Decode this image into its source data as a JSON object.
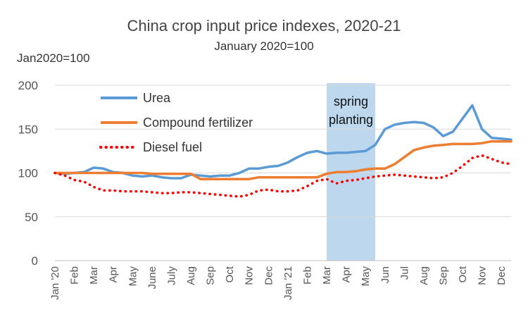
{
  "chart_data": {
    "type": "line",
    "title": "China crop input price indexes, 2020-21",
    "subtitle": "January 2020=100",
    "ylabel": "Jan2020=100",
    "ylim": [
      0,
      200
    ],
    "yticks": [
      0,
      50,
      100,
      150,
      200
    ],
    "grid": "horizontal",
    "legend": "top-left",
    "xtick_labels": [
      "Jan '20",
      "Feb",
      "Mar",
      "Apr",
      "May",
      "June",
      "July",
      "Aug",
      "Sep",
      "Oct",
      "Nov",
      "Dec",
      "Jan '21",
      "Feb",
      "Mar",
      "Apr",
      "May",
      "Jun",
      "Jul",
      "Aug",
      "Sep",
      "Oct",
      "Nov",
      "Dec"
    ],
    "x": [
      0,
      0.5,
      1,
      1.5,
      2,
      2.5,
      3,
      3.5,
      4,
      4.5,
      5,
      5.5,
      6,
      6.5,
      7,
      7.5,
      8,
      8.5,
      9,
      9.5,
      10,
      10.5,
      11,
      11.5,
      12,
      12.5,
      13,
      13.5,
      14,
      14.5,
      15,
      15.5,
      16,
      16.5,
      17,
      17.5,
      18,
      18.5,
      19,
      19.5,
      20,
      20.5,
      21,
      21.5,
      22,
      22.5,
      23,
      23.5
    ],
    "series": [
      {
        "name": "Urea",
        "color": "#5b9bd5",
        "style": "solid",
        "values": [
          100,
          99,
          100,
          101,
          106,
          105,
          101,
          100,
          97,
          96,
          97,
          95,
          94,
          94,
          98,
          97,
          96,
          97,
          97,
          100,
          105,
          105,
          107,
          108,
          112,
          118,
          123,
          125,
          122,
          123,
          123,
          124,
          125,
          132,
          150,
          155,
          157,
          158,
          157,
          152,
          142,
          147,
          162,
          177,
          150,
          140,
          139,
          138
        ]
      },
      {
        "name": "Compound fertilizer",
        "color": "#ed7d31",
        "style": "solid",
        "values": [
          100,
          100,
          100,
          100,
          100,
          100,
          100,
          100,
          100,
          100,
          99,
          99,
          99,
          99,
          99,
          93,
          93,
          93,
          93,
          93,
          93,
          95,
          95,
          95,
          95,
          95,
          95,
          95,
          99,
          101,
          101,
          102,
          104,
          105,
          105,
          110,
          118,
          126,
          129,
          131,
          132,
          133,
          133,
          133,
          134,
          136,
          136,
          136
        ]
      },
      {
        "name": "Diesel fuel",
        "color": "#ff0000",
        "style": "dotted",
        "values": [
          100,
          97,
          92,
          90,
          84,
          80,
          80,
          79,
          79,
          79,
          78,
          77,
          77,
          78,
          78,
          77,
          76,
          75,
          74,
          73,
          75,
          80,
          81,
          79,
          79,
          80,
          85,
          91,
          93,
          88,
          91,
          92,
          94,
          96,
          97,
          98,
          97,
          96,
          95,
          94,
          95,
          100,
          108,
          117,
          120,
          116,
          112,
          110
        ]
      }
    ],
    "annotations": [
      {
        "text_lines": [
          "spring",
          "planting"
        ],
        "x_start": 14,
        "x_end": 16.5,
        "color": "#bdd7ee"
      }
    ]
  }
}
